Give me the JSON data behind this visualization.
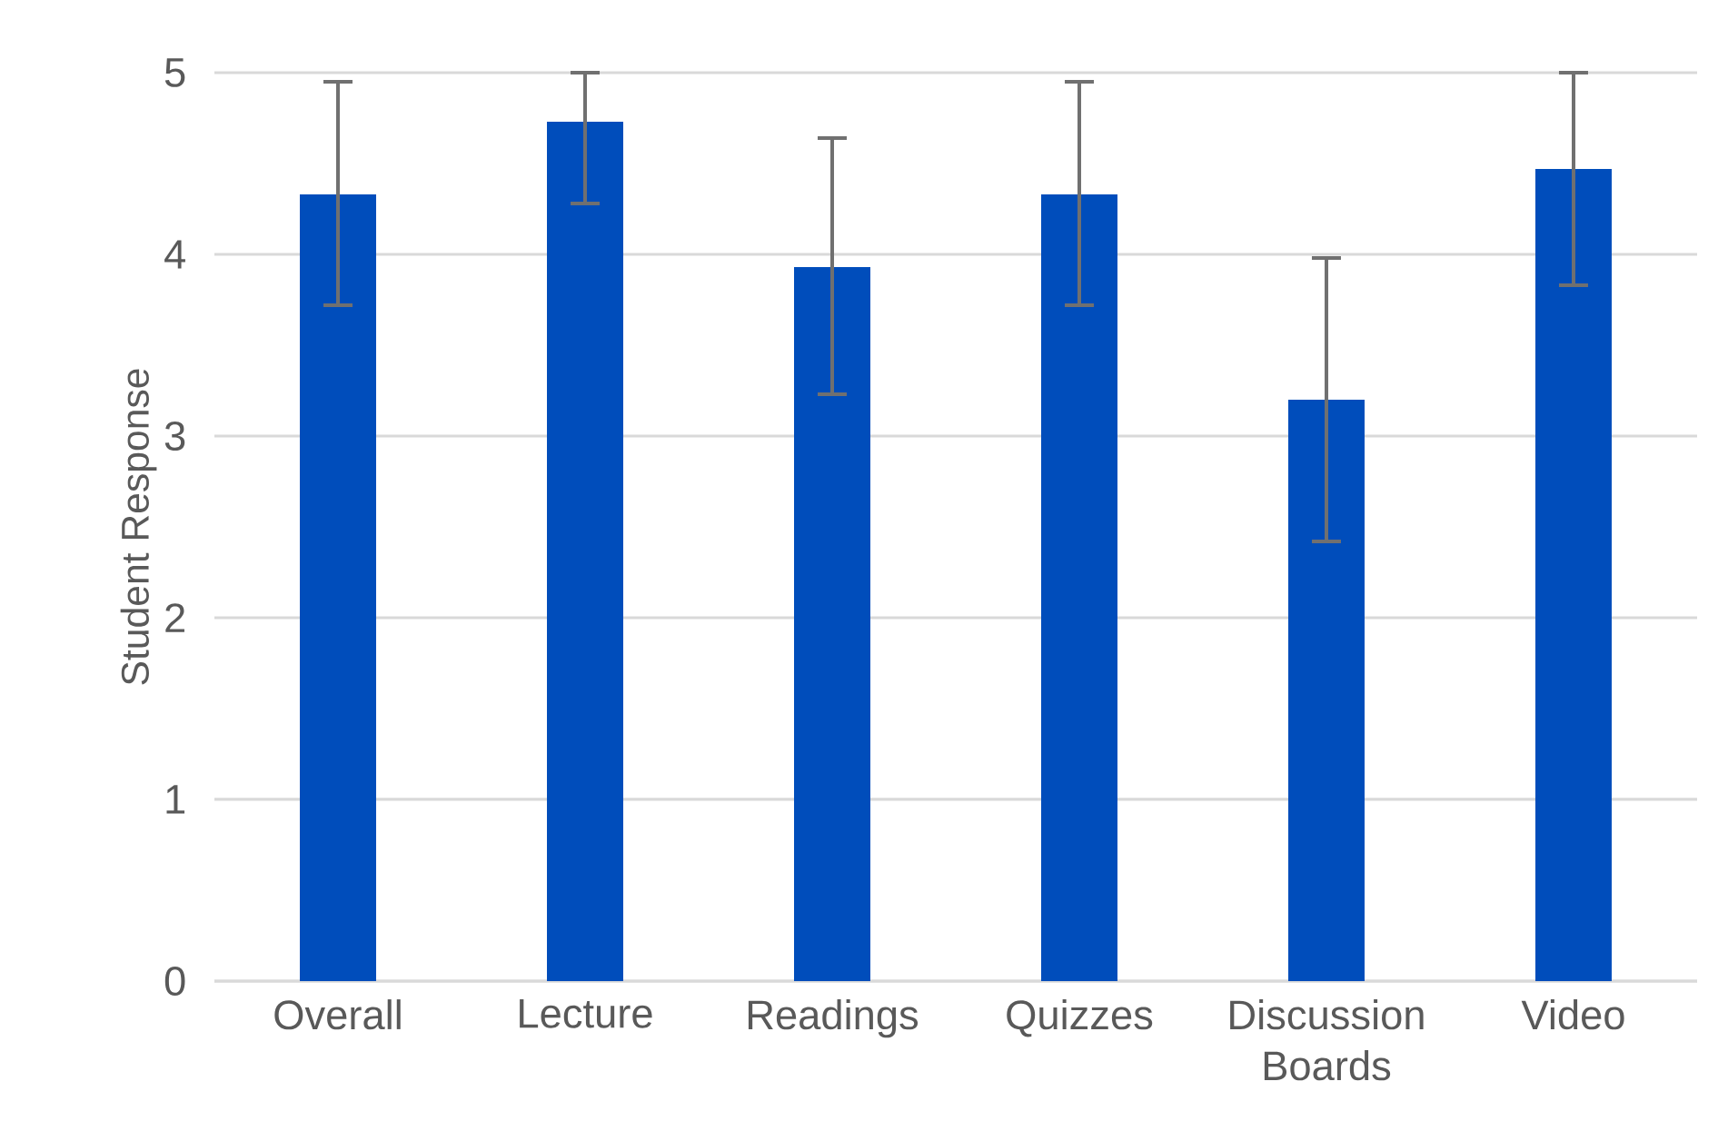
{
  "chart_data": {
    "type": "bar",
    "ylabel": "Student Response",
    "categories": [
      "Overall",
      "Lecture",
      "Readings",
      "Quizzes",
      "Discussion Boards",
      "Video"
    ],
    "values": [
      4.33,
      4.73,
      3.93,
      4.33,
      3.2,
      4.47
    ],
    "errors": [
      [
        3.72,
        4.95
      ],
      [
        4.28,
        5
      ],
      [
        3.23,
        4.64
      ],
      [
        3.72,
        4.95
      ],
      [
        2.42,
        3.98
      ],
      [
        3.83,
        5
      ]
    ],
    "color": "#004dbb",
    "ylim": [
      0,
      5
    ],
    "yticks": [
      0,
      1,
      2,
      3,
      4,
      5
    ],
    "grid": "y"
  }
}
